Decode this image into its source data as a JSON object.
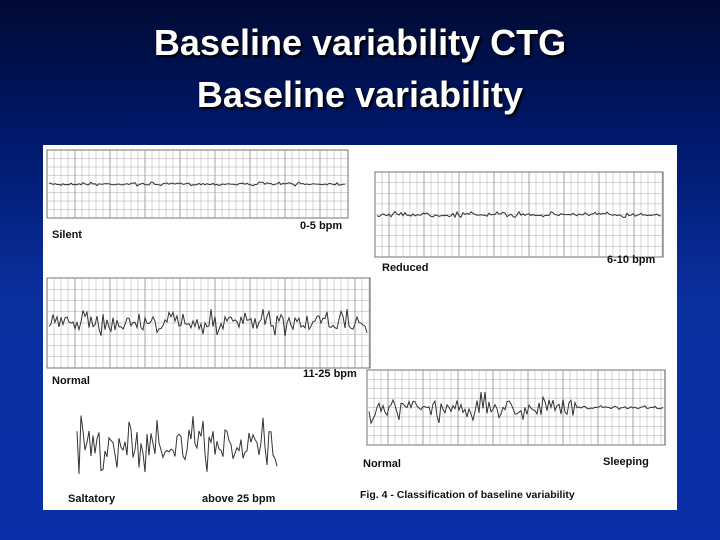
{
  "slide": {
    "title_lines": [
      "Baseline variability CTG",
      "Baseline variability"
    ]
  },
  "figure": {
    "strips": [
      {
        "left_label": "Silent",
        "right_label": "0-5 bpm"
      },
      {
        "left_label": "Reduced",
        "right_label": "6-10 bpm"
      },
      {
        "left_label": "Normal",
        "right_label": "11-25 bpm"
      },
      {
        "left_label": "Saltatory",
        "right_label": "above 25 bpm"
      },
      {
        "left_label": "Normal",
        "right_label": "Sleeping"
      }
    ],
    "caption": "Fig. 4 - Classification of baseline variability"
  }
}
